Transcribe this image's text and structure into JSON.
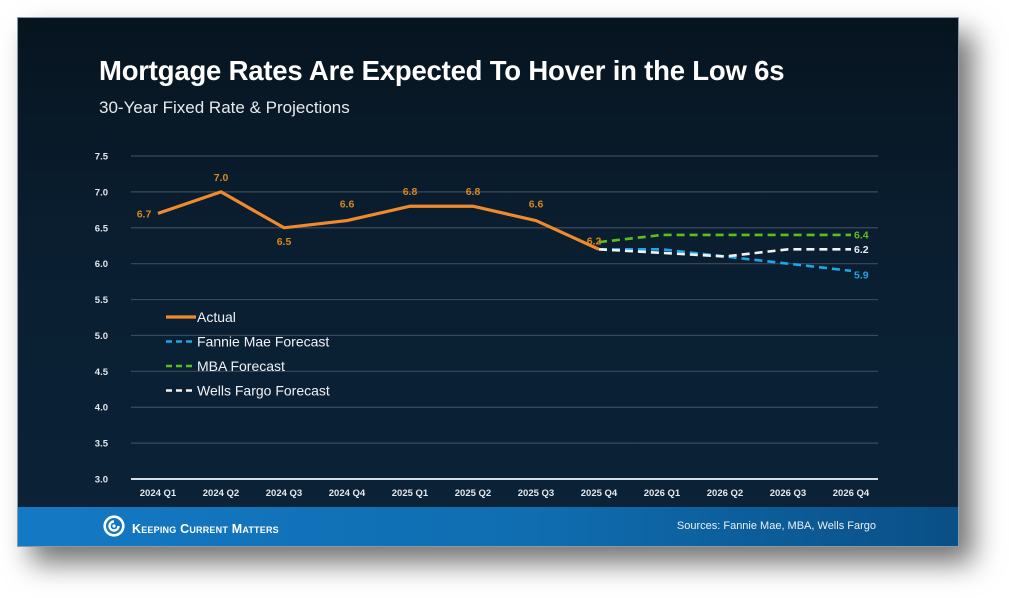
{
  "slide": {
    "title": "Mortgage Rates Are Expected To Hover in the Low 6s",
    "subtitle": "30-Year Fixed Rate & Projections"
  },
  "footer": {
    "brand": "Keeping Current Matters",
    "brand_icon": "swirl-logo-icon",
    "sources": "Sources: Fannie Mae, MBA, Wells Fargo"
  },
  "colors": {
    "actual": "#f08a2c",
    "fannie_mae": "#1fa6e6",
    "mba": "#5fbf1a",
    "wells_fargo": "#f2f2f2",
    "label_orange": "#d8861f",
    "grid": "#3a4b5c",
    "axis_text": "#e4e8ec"
  },
  "chart_data": {
    "type": "line",
    "title": "Mortgage Rates Are Expected To Hover in the Low 6s",
    "subtitle": "30-Year Fixed Rate & Projections",
    "xlabel": "",
    "ylabel": "",
    "ylim": [
      3.0,
      7.5
    ],
    "yticks": [
      "3.0",
      "3.5",
      "4.0",
      "4.5",
      "5.0",
      "5.5",
      "6.0",
      "6.5",
      "7.0",
      "7.5"
    ],
    "grid": true,
    "legend_position": "left-middle",
    "categories": [
      "2024 Q1",
      "2024 Q2",
      "2024 Q3",
      "2024 Q4",
      "2025 Q1",
      "2025 Q2",
      "2025 Q3",
      "2025 Q4",
      "2026 Q1",
      "2026 Q2",
      "2026 Q3",
      "2026 Q4"
    ],
    "series": [
      {
        "name": "Actual",
        "key": "actual",
        "style": "solid",
        "values": [
          6.7,
          7.0,
          6.5,
          6.6,
          6.8,
          6.8,
          6.6,
          6.2,
          null,
          null,
          null,
          null
        ],
        "labels": [
          "6.7",
          "7.0",
          "6.5",
          "6.6",
          "6.8",
          "6.8",
          "6.6",
          "6.2",
          null,
          null,
          null,
          null
        ]
      },
      {
        "name": "Fannie Mae Forecast",
        "key": "fannie_mae",
        "style": "dashed",
        "values": [
          null,
          null,
          null,
          null,
          null,
          null,
          null,
          6.2,
          6.2,
          6.1,
          6.0,
          5.9
        ],
        "labels": [
          null,
          null,
          null,
          null,
          null,
          null,
          null,
          null,
          null,
          null,
          null,
          "5.9"
        ]
      },
      {
        "name": "MBA Forecast",
        "key": "mba",
        "style": "dashed",
        "values": [
          null,
          null,
          null,
          null,
          null,
          null,
          null,
          6.3,
          6.4,
          6.4,
          6.4,
          6.4
        ],
        "labels": [
          null,
          null,
          null,
          null,
          null,
          null,
          null,
          null,
          null,
          null,
          null,
          "6.4"
        ]
      },
      {
        "name": "Wells Fargo Forecast",
        "key": "wells_fargo",
        "style": "dashed",
        "values": [
          null,
          null,
          null,
          null,
          null,
          null,
          null,
          6.2,
          6.15,
          6.1,
          6.2,
          6.2
        ],
        "labels": [
          null,
          null,
          null,
          null,
          null,
          null,
          null,
          null,
          null,
          null,
          null,
          "6.2"
        ]
      }
    ]
  }
}
